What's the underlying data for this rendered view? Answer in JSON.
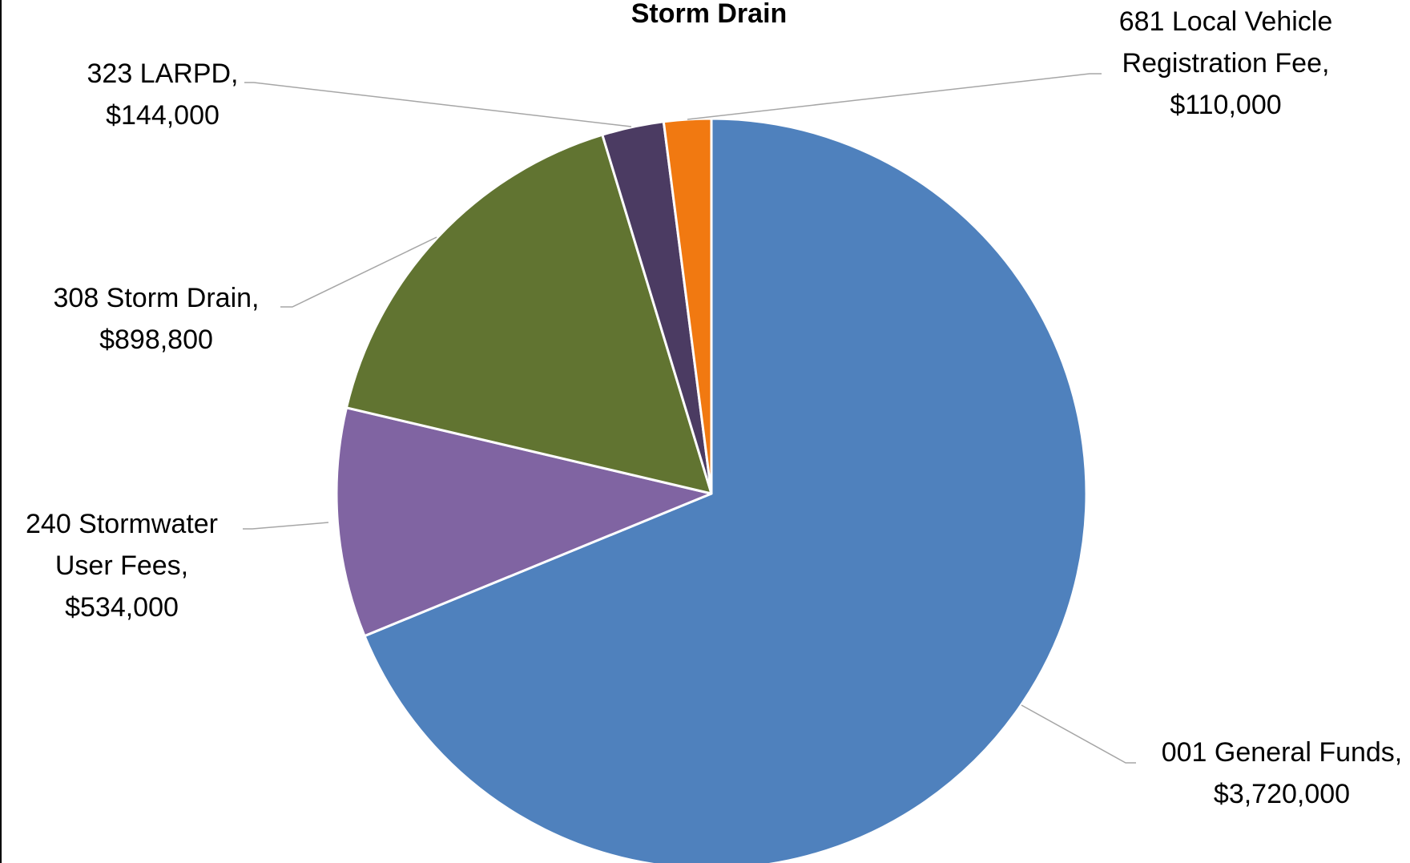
{
  "chart_data": {
    "type": "pie",
    "title": "Storm Drain",
    "slices": [
      {
        "label_lines": [
          "001 General Funds,",
          "$3,720,000"
        ],
        "category": "001 General Funds",
        "value": 3720000,
        "display_value": "$3,720,000",
        "color": "#4F81BD"
      },
      {
        "label_lines": [
          "240 Stormwater",
          "User Fees,",
          "$534,000"
        ],
        "category": "240 Stormwater User Fees",
        "value": 534000,
        "display_value": "$534,000",
        "color": "#8064A2"
      },
      {
        "label_lines": [
          "308 Storm Drain,",
          "$898,800"
        ],
        "category": "308 Storm Drain",
        "value": 898800,
        "display_value": "$898,800",
        "color": "#617431"
      },
      {
        "label_lines": [
          "323 LARPD,",
          "$144,000"
        ],
        "category": "323 LARPD",
        "value": 144000,
        "display_value": "$144,000",
        "color": "#4B3B62"
      },
      {
        "label_lines": [
          "681 Local Vehicle",
          "Registration Fee,",
          "$110,000"
        ],
        "category": "681 Local Vehicle Registration Fee",
        "value": 110000,
        "display_value": "$110,000",
        "color": "#F17911"
      }
    ],
    "slice_border_color": "#FFFFFF",
    "leader_line_color": "#A6A6A6",
    "legend": "none"
  }
}
